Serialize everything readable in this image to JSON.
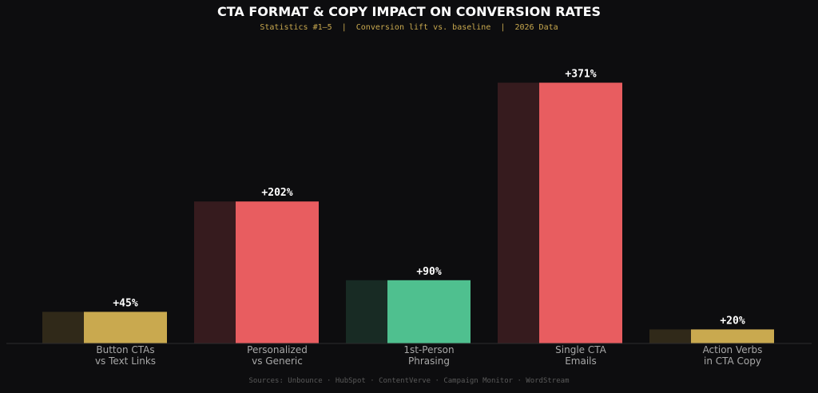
{
  "chart_data": {
    "type": "bar",
    "title": "CTA FORMAT & COPY IMPACT ON CONVERSION RATES",
    "subtitle": "Statistics #1–5  |  Conversion lift vs. baseline  |  2026 Data",
    "source": "Sources: Unbounce · HubSpot · ContentVerve · Campaign Monitor · WordStream",
    "categories": [
      [
        "Button CTAs",
        "vs Text Links"
      ],
      [
        "Personalized",
        "vs Generic"
      ],
      [
        "1st-Person",
        "Phrasing"
      ],
      [
        "Single CTA",
        "Emails"
      ],
      [
        "Action Verbs",
        "in CTA Copy"
      ]
    ],
    "values": [
      45,
      202,
      90,
      371,
      20
    ],
    "value_labels": [
      "+45%",
      "+202%",
      "+90%",
      "+371%",
      "+20%"
    ],
    "colors": [
      "#c9a94f",
      "#e85d60",
      "#4fc08f",
      "#e85d60",
      "#c9a94f"
    ],
    "shadow_colors": [
      "#302919",
      "#361b1e",
      "#182b24",
      "#361b1e",
      "#302919"
    ],
    "ylim": [
      0,
      400
    ],
    "grid": false,
    "legend": "none"
  }
}
